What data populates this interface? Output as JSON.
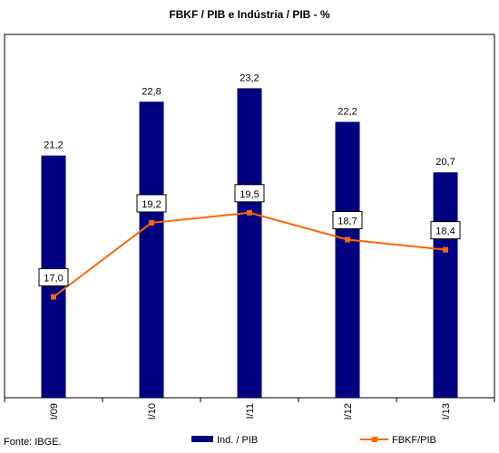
{
  "chart_data": {
    "type": "bar",
    "title": "FBKF / PIB e Indústria / PIB - %",
    "categories": [
      "I/09",
      "I/10",
      "I/11",
      "I/12",
      "I/13"
    ],
    "series": [
      {
        "name": "Ind. / PIB",
        "type": "bar",
        "color": "#000080",
        "values": [
          21.2,
          22.8,
          23.2,
          22.2,
          20.7
        ],
        "labels": [
          "21,2",
          "22,8",
          "23,2",
          "22,2",
          "20,7"
        ]
      },
      {
        "name": "FBKF/PIB",
        "type": "line",
        "color": "#FF6600",
        "values": [
          17.0,
          19.2,
          19.5,
          18.7,
          18.4
        ],
        "labels": [
          "17,0",
          "19,2",
          "19,5",
          "18,7",
          "18,4"
        ]
      }
    ],
    "ylim": [
      14,
      24.8
    ],
    "grid": false,
    "legend": "bottom",
    "xlabel": "",
    "ylabel": ""
  },
  "source": "Fonte: IBGE."
}
